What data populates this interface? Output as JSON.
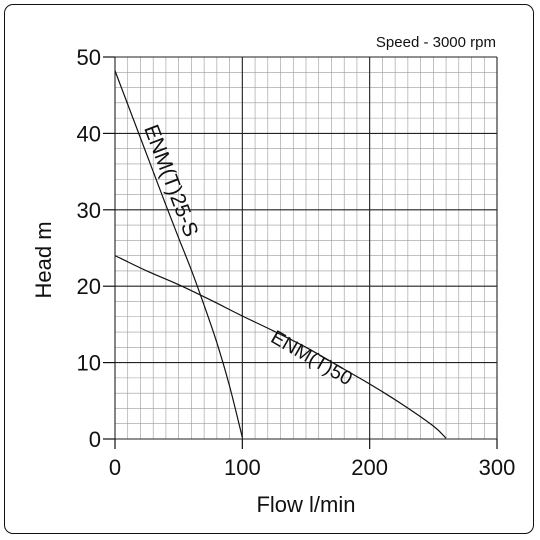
{
  "chart_data": {
    "type": "line",
    "title": "Speed - 3000 rpm",
    "xlabel": "Flow l/min",
    "ylabel": "Head m",
    "xlim": [
      0,
      300
    ],
    "ylim": [
      0,
      50
    ],
    "x_ticks": [
      0,
      100,
      200,
      300
    ],
    "y_ticks": [
      0,
      10,
      20,
      30,
      40,
      50
    ],
    "x_ticks_labels": [
      "0",
      "100",
      "200",
      "300"
    ],
    "y_ticks_labels": [
      "0",
      "10",
      "20",
      "30",
      "40",
      "50"
    ],
    "grid": true,
    "series": [
      {
        "name": "ENM(T)25-S",
        "x": [
          0,
          10,
          20,
          30,
          40,
          50,
          60,
          70,
          80,
          90,
          100
        ],
        "y": [
          48.2,
          43.8,
          39.4,
          35.0,
          30.6,
          26.3,
          22.1,
          17.5,
          12.6,
          6.9,
          0.2
        ]
      },
      {
        "name": "ENM(T)50",
        "x": [
          0,
          25,
          50,
          75,
          100,
          125,
          150,
          175,
          200,
          225,
          250,
          260
        ],
        "y": [
          24.0,
          22.0,
          20.2,
          18.2,
          16.1,
          14.1,
          12.0,
          9.6,
          7.2,
          4.6,
          1.7,
          0.1
        ]
      }
    ]
  }
}
